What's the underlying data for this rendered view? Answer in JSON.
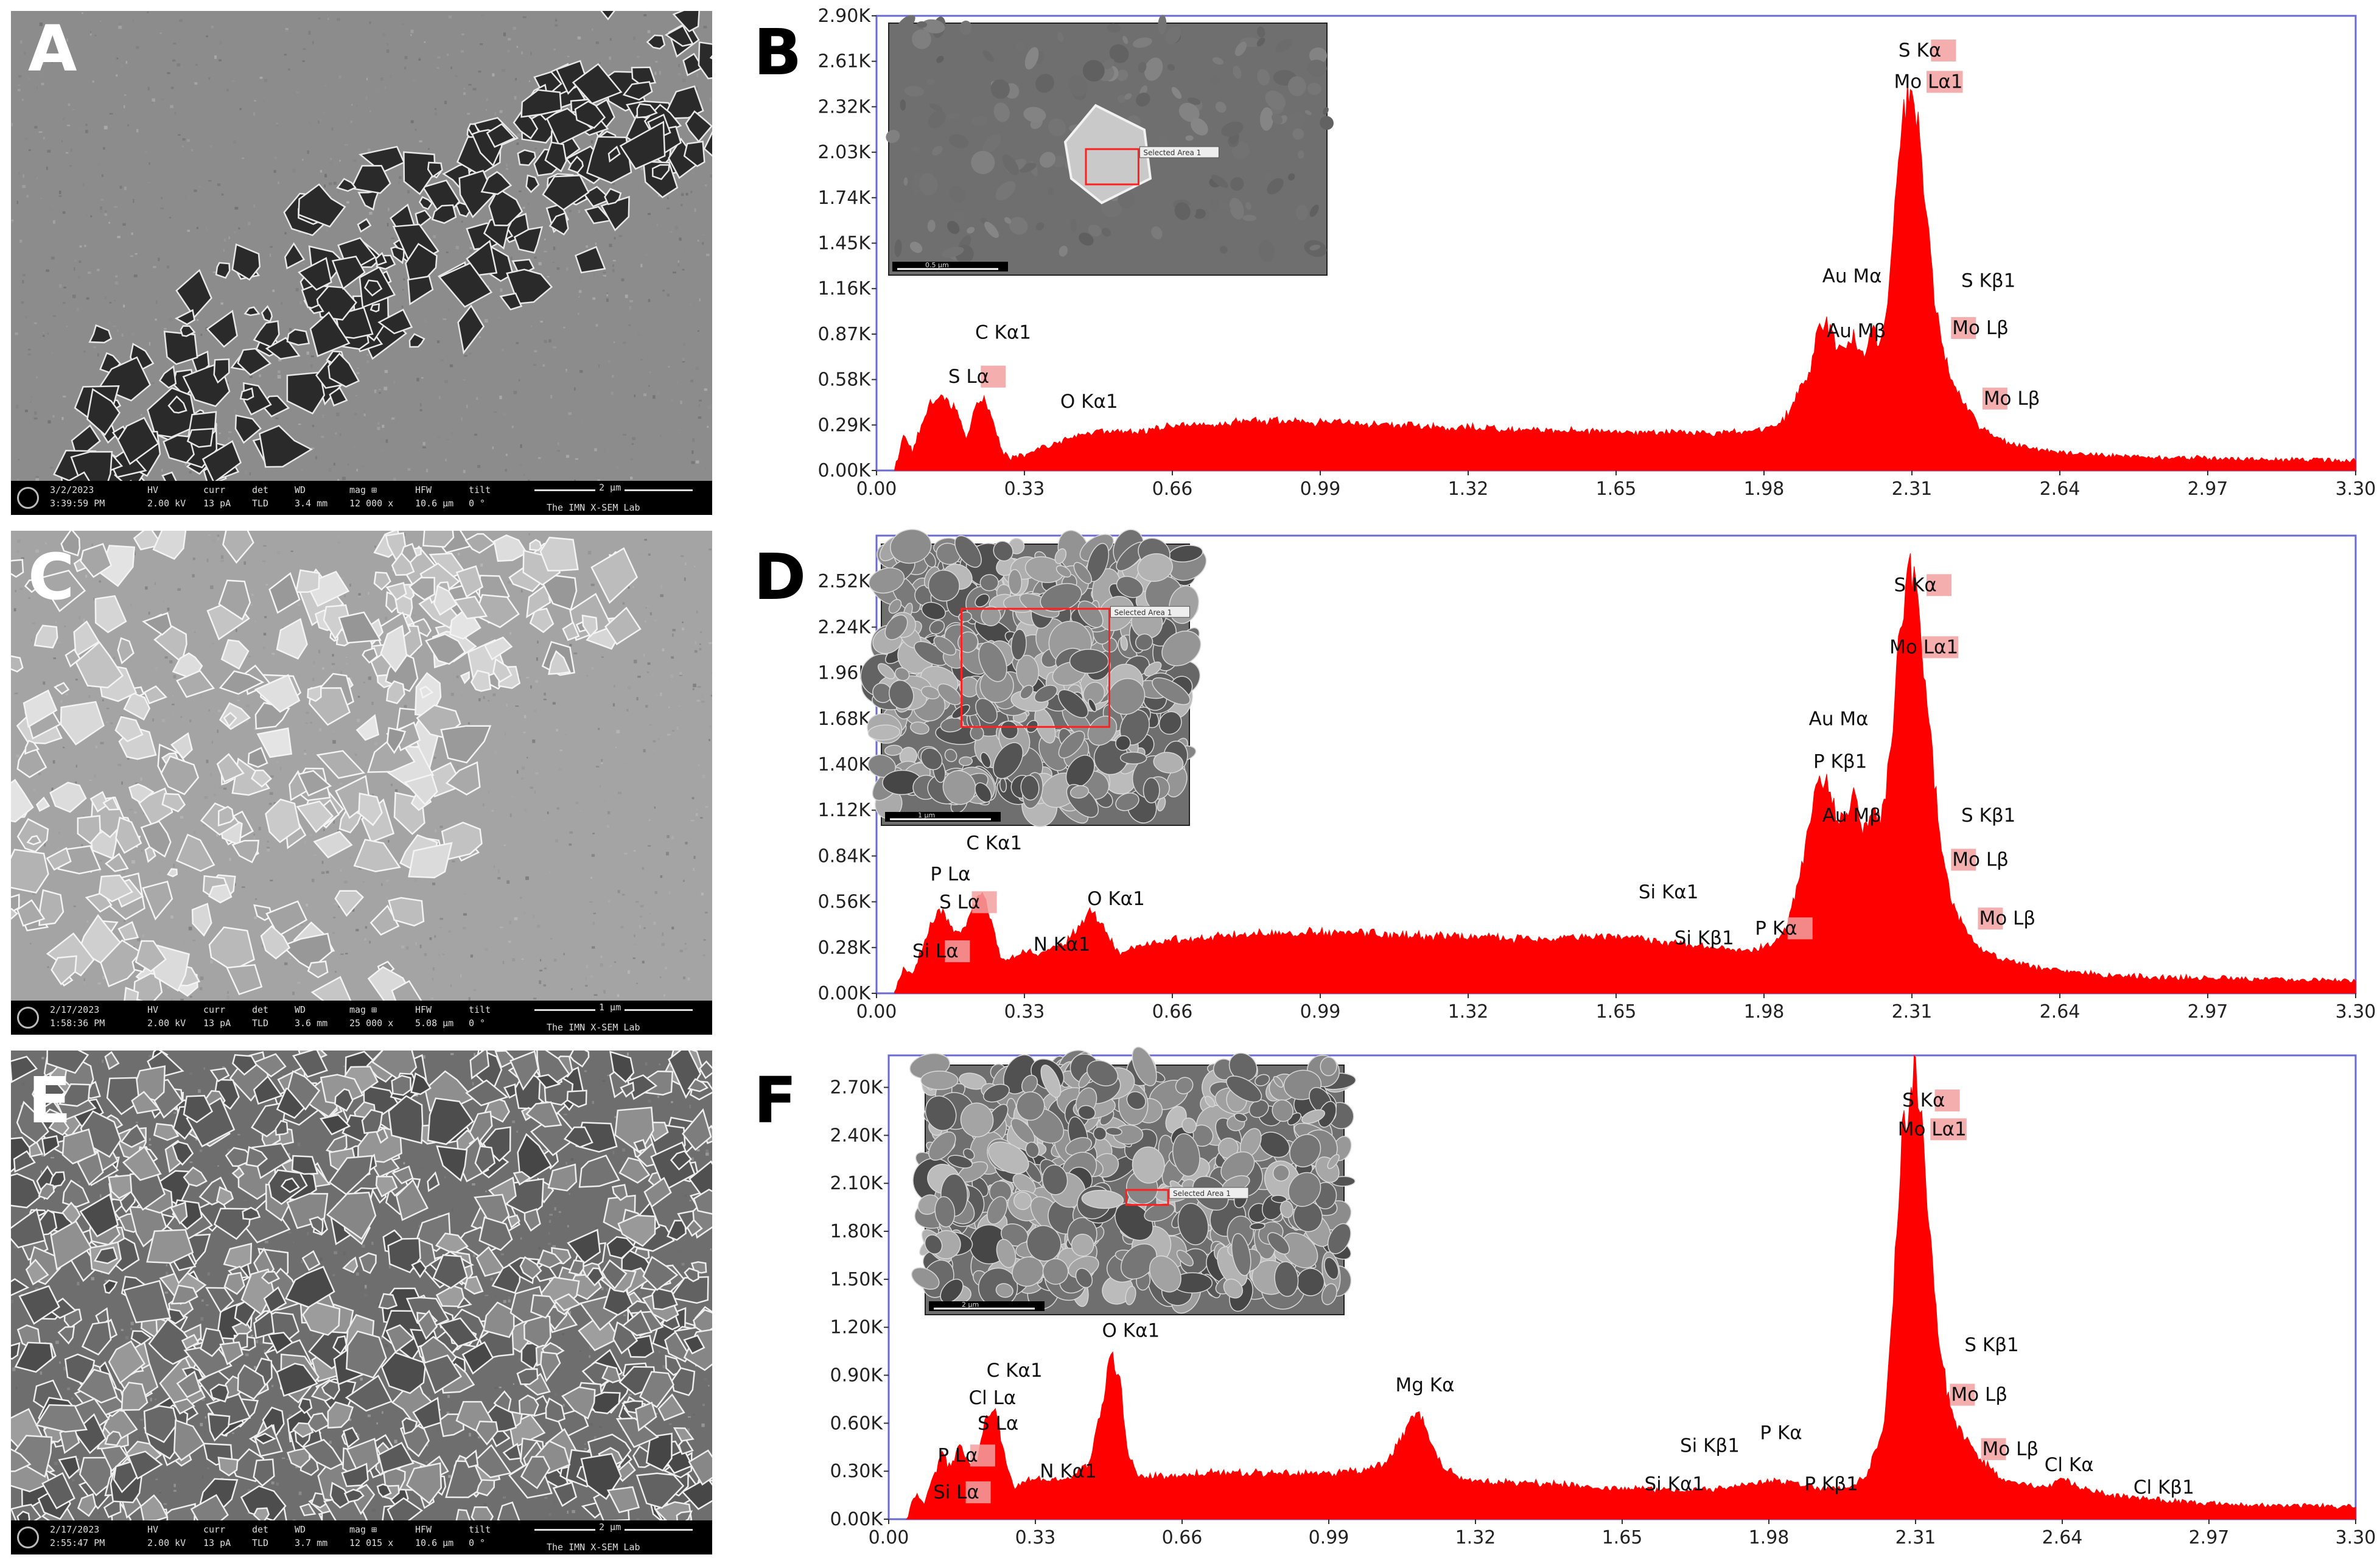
{
  "panels": {
    "A": "A",
    "B": "B",
    "C": "C",
    "D": "D",
    "E": "E",
    "F": "F"
  },
  "sem": [
    {
      "id": "A",
      "date": "3/2/2023",
      "time": "3:39:59 PM",
      "hv_label": "HV",
      "hv": "2.00 kV",
      "curr_label": "curr",
      "curr": "13 pA",
      "det_label": "det",
      "det": "TLD",
      "wd_label": "WD",
      "wd": "3.4 mm",
      "mag_label": "mag ⊞",
      "mag": "12 000 x",
      "hfw_label": "HFW",
      "hfw": "10.6 µm",
      "tilt_label": "tilt",
      "tilt": "0 °",
      "scale": "2 µm",
      "lab": "The IMN X-SEM Lab",
      "tone": "dark-flakes"
    },
    {
      "id": "C",
      "date": "2/17/2023",
      "time": "1:58:36 PM",
      "hv_label": "HV",
      "hv": "2.00 kV",
      "curr_label": "curr",
      "curr": "13 pA",
      "det_label": "det",
      "det": "TLD",
      "wd_label": "WD",
      "wd": "3.6 mm",
      "mag_label": "mag ⊞",
      "mag": "25 000 x",
      "hfw_label": "HFW",
      "hfw": "5.08 µm",
      "tilt_label": "tilt",
      "tilt": "0 °",
      "scale": "1 µm",
      "lab": "The IMN X-SEM Lab",
      "tone": "bright-clusters"
    },
    {
      "id": "E",
      "date": "2/17/2023",
      "time": "2:55:47 PM",
      "hv_label": "HV",
      "hv": "2.00 kV",
      "curr_label": "curr",
      "curr": "13 pA",
      "det_label": "det",
      "det": "TLD",
      "wd_label": "WD",
      "wd": "3.7 mm",
      "mag_label": "mag ⊞",
      "mag": "12 015 x",
      "hfw_label": "HFW",
      "hfw": "10.6 µm",
      "tilt_label": "tilt",
      "tilt": "0 °",
      "scale": "2 µm",
      "lab": "The IMN X-SEM Lab",
      "tone": "dense-flakes"
    }
  ],
  "colors": {
    "spectrum_fill": "#ff0000",
    "frame": "#6a6ad0",
    "label_highlight": "#f2a0a0",
    "inset_selection": "#ff2020"
  },
  "chart_data": [
    {
      "id": "B",
      "type": "area",
      "xlim": [
        0.0,
        3.3
      ],
      "xticks": [
        "0.00",
        "0.33",
        "0.66",
        "0.99",
        "1.32",
        "1.65",
        "1.98",
        "2.31",
        "2.64",
        "2.97",
        "3.30"
      ],
      "yticks": [
        "0.00K",
        "0.29K",
        "0.58K",
        "0.87K",
        "1.16K",
        "1.45K",
        "1.74K",
        "2.03K",
        "2.32K",
        "2.61K",
        "2.90K"
      ],
      "ylim": [
        0,
        2900
      ],
      "inset": {
        "selection_label": "Selected Area 1",
        "scale": "0.5 µm"
      },
      "x": [
        0.04,
        0.06,
        0.08,
        0.1,
        0.12,
        0.14,
        0.16,
        0.18,
        0.2,
        0.22,
        0.24,
        0.26,
        0.28,
        0.3,
        0.33,
        0.36,
        0.4,
        0.45,
        0.5,
        0.55,
        0.6,
        0.66,
        0.75,
        0.85,
        0.95,
        1.05,
        1.15,
        1.25,
        1.35,
        1.45,
        1.55,
        1.65,
        1.75,
        1.85,
        1.95,
        2.0,
        2.03,
        2.06,
        2.08,
        2.1,
        2.12,
        2.14,
        2.16,
        2.18,
        2.2,
        2.22,
        2.24,
        2.26,
        2.28,
        2.3,
        2.31,
        2.32,
        2.34,
        2.36,
        2.38,
        2.4,
        2.43,
        2.46,
        2.5,
        2.55,
        2.6,
        2.66,
        2.75,
        2.85,
        2.95,
        3.05,
        3.15,
        3.25,
        3.3
      ],
      "y": [
        0,
        220,
        120,
        300,
        420,
        470,
        440,
        380,
        200,
        400,
        470,
        300,
        120,
        80,
        100,
        140,
        170,
        230,
        260,
        240,
        260,
        280,
        300,
        320,
        310,
        300,
        290,
        280,
        270,
        260,
        255,
        250,
        245,
        240,
        250,
        280,
        350,
        500,
        620,
        880,
        950,
        820,
        780,
        860,
        720,
        900,
        800,
        1200,
        2100,
        2350,
        2400,
        2300,
        1700,
        1100,
        760,
        560,
        420,
        280,
        200,
        160,
        130,
        110,
        95,
        85,
        80,
        75,
        70,
        65,
        60
      ],
      "annotations": [
        {
          "text": "S  Lα",
          "x": 0.16,
          "y": 560,
          "hl": [
            3,
            5
          ]
        },
        {
          "text": "C  Kα1",
          "x": 0.22,
          "y": 840,
          "hl": []
        },
        {
          "text": "O  Kα1",
          "x": 0.41,
          "y": 400,
          "hl": []
        },
        {
          "text": "Au Mα",
          "x": 2.11,
          "y": 1200,
          "hl": []
        },
        {
          "text": "Au Mβ",
          "x": 2.12,
          "y": 850,
          "hl": []
        },
        {
          "text": "S  Kα",
          "x": 2.28,
          "y": 2640,
          "hl": [
            3,
            5
          ]
        },
        {
          "text": "Mo Lα1",
          "x": 2.27,
          "y": 2440,
          "hl": [
            3,
            6
          ]
        },
        {
          "text": "S  Kβ1",
          "x": 2.42,
          "y": 1170,
          "hl": []
        },
        {
          "text": "Mo Lβ",
          "x": 2.4,
          "y": 870,
          "hl": [
            0,
            2
          ]
        },
        {
          "text": "Mo Lβ",
          "x": 2.47,
          "y": 420,
          "hl": [
            0,
            2
          ]
        }
      ]
    },
    {
      "id": "D",
      "type": "area",
      "xlim": [
        0.0,
        3.3
      ],
      "xticks": [
        "0.00",
        "0.33",
        "0.66",
        "0.99",
        "1.32",
        "1.65",
        "1.98",
        "2.31",
        "2.64",
        "2.97",
        "3.30"
      ],
      "yticks": [
        "0.00K",
        "0.28K",
        "0.56K",
        "0.84K",
        "1.12K",
        "1.40K",
        "1.68K",
        "1.96K",
        "2.24K",
        "2.52K"
      ],
      "ylim": [
        0,
        2800
      ],
      "inset": {
        "selection_label": "Selected Area 1",
        "scale": "1 µm"
      },
      "x": [
        0.04,
        0.06,
        0.08,
        0.1,
        0.12,
        0.14,
        0.16,
        0.18,
        0.2,
        0.22,
        0.24,
        0.26,
        0.28,
        0.3,
        0.33,
        0.36,
        0.39,
        0.42,
        0.45,
        0.48,
        0.51,
        0.54,
        0.58,
        0.66,
        0.75,
        0.85,
        0.95,
        1.05,
        1.15,
        1.25,
        1.35,
        1.45,
        1.55,
        1.65,
        1.75,
        1.85,
        1.95,
        2.0,
        2.03,
        2.06,
        2.08,
        2.1,
        2.12,
        2.14,
        2.16,
        2.18,
        2.2,
        2.22,
        2.24,
        2.26,
        2.28,
        2.3,
        2.31,
        2.32,
        2.34,
        2.36,
        2.38,
        2.4,
        2.43,
        2.46,
        2.5,
        2.55,
        2.6,
        2.66,
        2.75,
        2.85,
        2.95,
        3.05,
        3.15,
        3.25,
        3.3
      ],
      "y": [
        0,
        150,
        120,
        260,
        420,
        500,
        440,
        360,
        420,
        560,
        620,
        400,
        200,
        220,
        260,
        240,
        280,
        300,
        400,
        520,
        380,
        250,
        280,
        330,
        350,
        360,
        370,
        370,
        360,
        350,
        340,
        330,
        340,
        350,
        320,
        280,
        260,
        300,
        400,
        700,
        1050,
        1300,
        1280,
        1100,
        1080,
        1200,
        1000,
        1100,
        1050,
        1400,
        2100,
        2500,
        2550,
        2400,
        1900,
        1300,
        800,
        550,
        400,
        280,
        220,
        180,
        150,
        130,
        110,
        100,
        95,
        90,
        85,
        80,
        75
      ],
      "annotations": [
        {
          "text": "P  Lα",
          "x": 0.12,
          "y": 690,
          "hl": []
        },
        {
          "text": "S  Lα",
          "x": 0.14,
          "y": 520,
          "hl": [
            3,
            5
          ]
        },
        {
          "text": "Si Lα",
          "x": 0.08,
          "y": 220,
          "hl": [
            3,
            5
          ]
        },
        {
          "text": "C  Kα1",
          "x": 0.2,
          "y": 880,
          "hl": []
        },
        {
          "text": "N  Kα1",
          "x": 0.35,
          "y": 260,
          "hl": []
        },
        {
          "text": "O  Kα1",
          "x": 0.47,
          "y": 540,
          "hl": []
        },
        {
          "text": "Si Kα1",
          "x": 1.7,
          "y": 580,
          "hl": []
        },
        {
          "text": "Si Kβ1",
          "x": 1.78,
          "y": 300,
          "hl": []
        },
        {
          "text": "P  Kα",
          "x": 1.96,
          "y": 360,
          "hl": [
            3,
            5
          ]
        },
        {
          "text": "Au Mα",
          "x": 2.08,
          "y": 1640,
          "hl": []
        },
        {
          "text": "P  Kβ1",
          "x": 2.09,
          "y": 1380,
          "hl": []
        },
        {
          "text": "Au Mβ",
          "x": 2.11,
          "y": 1050,
          "hl": []
        },
        {
          "text": "S  Kα",
          "x": 2.27,
          "y": 2460,
          "hl": [
            3,
            5
          ]
        },
        {
          "text": "Mo Lα1",
          "x": 2.26,
          "y": 2080,
          "hl": [
            3,
            6
          ]
        },
        {
          "text": "S  Kβ1",
          "x": 2.42,
          "y": 1050,
          "hl": []
        },
        {
          "text": "Mo Lβ",
          "x": 2.4,
          "y": 780,
          "hl": [
            0,
            2
          ]
        },
        {
          "text": "Mo Lβ",
          "x": 2.46,
          "y": 420,
          "hl": [
            0,
            2
          ]
        }
      ]
    },
    {
      "id": "F",
      "type": "area",
      "xlim": [
        0.0,
        3.3
      ],
      "xticks": [
        "0.00",
        "0.33",
        "0.66",
        "0.99",
        "1.32",
        "1.65",
        "1.98",
        "2.31",
        "2.64",
        "2.97",
        "3.30"
      ],
      "yticks": [
        "0.00K",
        "0.30K",
        "0.60K",
        "0.90K",
        "1.20K",
        "1.50K",
        "1.80K",
        "2.10K",
        "2.40K",
        "2.70K"
      ],
      "ylim": [
        0,
        2900
      ],
      "inset": {
        "selection_label": "Selected Area 1",
        "scale": "2 µm"
      },
      "x": [
        0.04,
        0.06,
        0.08,
        0.1,
        0.12,
        0.14,
        0.16,
        0.18,
        0.2,
        0.22,
        0.24,
        0.26,
        0.28,
        0.3,
        0.33,
        0.36,
        0.39,
        0.42,
        0.45,
        0.48,
        0.5,
        0.52,
        0.54,
        0.56,
        0.6,
        0.66,
        0.75,
        0.85,
        0.95,
        1.05,
        1.12,
        1.16,
        1.19,
        1.22,
        1.25,
        1.28,
        1.32,
        1.4,
        1.5,
        1.6,
        1.7,
        1.8,
        1.9,
        1.95,
        2.0,
        2.05,
        2.1,
        2.15,
        2.2,
        2.24,
        2.26,
        2.28,
        2.3,
        2.31,
        2.32,
        2.34,
        2.36,
        2.38,
        2.4,
        2.43,
        2.46,
        2.5,
        2.55,
        2.6,
        2.64,
        2.68,
        2.75,
        2.85,
        2.95,
        3.05,
        3.15,
        3.25,
        3.3
      ],
      "y": [
        0,
        150,
        100,
        260,
        400,
        320,
        480,
        350,
        400,
        620,
        680,
        400,
        200,
        220,
        260,
        240,
        250,
        280,
        350,
        700,
        1050,
        850,
        400,
        260,
        270,
        280,
        290,
        290,
        280,
        300,
        350,
        550,
        700,
        480,
        320,
        260,
        240,
        230,
        220,
        200,
        190,
        180,
        200,
        220,
        240,
        210,
        190,
        200,
        260,
        600,
        1400,
        2400,
        2700,
        2750,
        2650,
        1900,
        1200,
        800,
        600,
        480,
        360,
        260,
        220,
        200,
        260,
        200,
        150,
        120,
        100,
        90,
        85,
        80,
        75
      ],
      "annotations": [
        {
          "text": "C  Kα1",
          "x": 0.22,
          "y": 890,
          "hl": []
        },
        {
          "text": "Cl Lα",
          "x": 0.18,
          "y": 720,
          "hl": []
        },
        {
          "text": "S  Lα",
          "x": 0.2,
          "y": 560,
          "hl": []
        },
        {
          "text": "P  Lα",
          "x": 0.11,
          "y": 360,
          "hl": [
            3,
            5
          ]
        },
        {
          "text": "Si Lα",
          "x": 0.1,
          "y": 130,
          "hl": [
            3,
            5
          ]
        },
        {
          "text": "N  Kα1",
          "x": 0.34,
          "y": 260,
          "hl": []
        },
        {
          "text": "O  Kα1",
          "x": 0.48,
          "y": 1140,
          "hl": []
        },
        {
          "text": "Mg Kα",
          "x": 1.14,
          "y": 800,
          "hl": []
        },
        {
          "text": "Si Kβ1",
          "x": 1.78,
          "y": 420,
          "hl": []
        },
        {
          "text": "Si Kα1",
          "x": 1.7,
          "y": 180,
          "hl": []
        },
        {
          "text": "P  Kα",
          "x": 1.96,
          "y": 500,
          "hl": []
        },
        {
          "text": "P  Kβ1",
          "x": 2.06,
          "y": 180,
          "hl": []
        },
        {
          "text": "S  Kα",
          "x": 2.28,
          "y": 2580,
          "hl": [
            3,
            5
          ]
        },
        {
          "text": "Mo Lα1",
          "x": 2.27,
          "y": 2400,
          "hl": [
            3,
            6
          ]
        },
        {
          "text": "S  Kβ1",
          "x": 2.42,
          "y": 1050,
          "hl": []
        },
        {
          "text": "Mo Lβ",
          "x": 2.39,
          "y": 740,
          "hl": [
            0,
            2
          ]
        },
        {
          "text": "Mo Lβ",
          "x": 2.46,
          "y": 400,
          "hl": [
            0,
            2
          ]
        },
        {
          "text": "Cl Kα",
          "x": 2.6,
          "y": 300,
          "hl": []
        },
        {
          "text": "Cl Kβ1",
          "x": 2.8,
          "y": 160,
          "hl": []
        }
      ]
    }
  ]
}
